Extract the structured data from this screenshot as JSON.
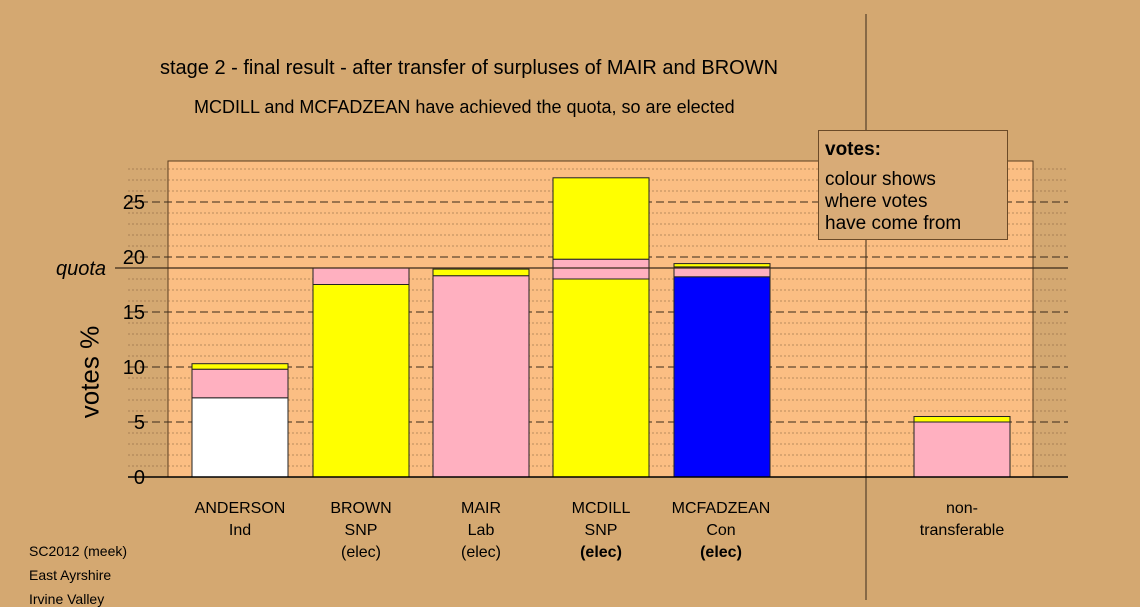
{
  "title": "stage 2 - final result - after transfer of surpluses of MAIR and BROWN",
  "subtitle": "MCDILL and MCFADZEAN have achieved the quota, so are elected",
  "legend": {
    "title": "votes:",
    "lines": [
      "colour shows",
      "where votes",
      "have come from"
    ]
  },
  "footer": [
    "SC2012 (meek)",
    "East Ayrshire",
    "Irvine Valley"
  ],
  "colors": {
    "background": "#d4a871",
    "plot_bg": "#fbbe83",
    "Ind": "#ffffff",
    "SNP": "#ffff00",
    "Lab": "#ffb0c0",
    "Con": "#0000ff"
  },
  "chart_data": {
    "type": "bar",
    "stacked": true,
    "ylabel": "votes %",
    "ylim": [
      0,
      28
    ],
    "yticks": [
      0,
      5,
      10,
      15,
      20,
      25
    ],
    "quota": 19.0,
    "quota_label": "quota",
    "grid": "dashed horizontal",
    "legend_placement": "top-right",
    "categories": [
      {
        "name": "ANDERSON",
        "party": "Ind",
        "note": "",
        "note_bold": false
      },
      {
        "name": "BROWN",
        "party": "SNP",
        "note": "(elec)",
        "note_bold": false
      },
      {
        "name": "MAIR",
        "party": "Lab",
        "note": "(elec)",
        "note_bold": false
      },
      {
        "name": "MCDILL",
        "party": "SNP",
        "note": "(elec)",
        "note_bold": true
      },
      {
        "name": "MCFADZEAN",
        "party": "Con",
        "note": "(elec)",
        "note_bold": true
      },
      {
        "name": "non-",
        "party": "transferable",
        "note": "",
        "note_bold": false
      }
    ],
    "series": [
      {
        "color": "#ffffff",
        "values": [
          7.2,
          0,
          0,
          0,
          0,
          0
        ]
      },
      {
        "color": "#ffff00",
        "values": [
          0,
          17.5,
          0,
          18.0,
          0,
          0
        ]
      },
      {
        "color": "#0000ff",
        "values": [
          0,
          0,
          0,
          0,
          18.2,
          0
        ]
      },
      {
        "color": "#ffb0c0",
        "values": [
          2.6,
          1.5,
          18.3,
          1.8,
          0.9,
          5.0
        ]
      },
      {
        "color": "#ffff00",
        "values": [
          0.5,
          0,
          0.6,
          7.4,
          0.3,
          0.5
        ]
      }
    ]
  }
}
